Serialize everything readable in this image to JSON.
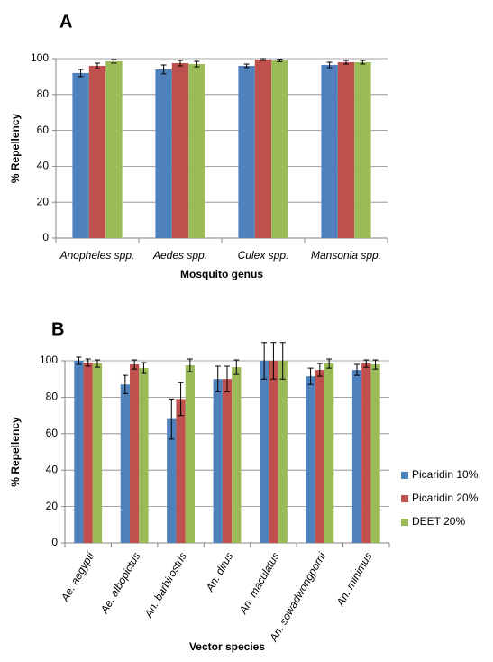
{
  "chart_data": [
    {
      "type": "bar",
      "panel": "A",
      "ylabel": "% Repellency",
      "xlabel": "Mosquito genus",
      "categories": [
        "Anopheles spp.",
        "Aedes spp.",
        "Culex spp.",
        "Mansonia spp."
      ],
      "series": [
        {
          "color": "#4f81bd",
          "values": [
            92,
            94,
            96,
            96.5
          ],
          "errors": [
            2,
            2.5,
            1,
            1.5
          ]
        },
        {
          "color": "#c0504d",
          "values": [
            96,
            97.5,
            99.5,
            98
          ],
          "errors": [
            1.5,
            1.5,
            0.5,
            1
          ]
        },
        {
          "color": "#9bbb59",
          "values": [
            98.5,
            97,
            99,
            98
          ],
          "errors": [
            1,
            1.5,
            0.7,
            1
          ]
        }
      ],
      "ylim": [
        0,
        100
      ],
      "yticks": [
        0,
        20,
        40,
        60,
        80,
        100
      ],
      "grid": true
    },
    {
      "type": "bar",
      "panel": "B",
      "ylabel": "% Repellency",
      "xlabel": "Vector species",
      "categories": [
        "Ae. aegypti",
        "Ae. albopictus",
        "An. barbirostris",
        "An. dirus",
        "An. maculatus",
        "An. sowadwongporni",
        "An. minimus"
      ],
      "series": [
        {
          "name": "Picaridin 10%",
          "color": "#4f81bd",
          "values": [
            100,
            87,
            68,
            90,
            100,
            91.5,
            95
          ],
          "errors": [
            2,
            5,
            11,
            7,
            10,
            4.5,
            3
          ]
        },
        {
          "name": "Picaridin 20%",
          "color": "#c0504d",
          "values": [
            99,
            98,
            79,
            90,
            100,
            95,
            98.5
          ],
          "errors": [
            2,
            2.5,
            9,
            7,
            10,
            3.5,
            2
          ]
        },
        {
          "name": "DEET 20%",
          "color": "#9bbb59",
          "values": [
            98.5,
            96,
            97.5,
            96.5,
            100,
            98.5,
            98
          ],
          "errors": [
            2,
            3,
            3.5,
            4,
            10,
            2.5,
            2.5
          ]
        }
      ],
      "ylim": [
        0,
        100
      ],
      "yticks": [
        0,
        20,
        40,
        60,
        80,
        100
      ],
      "grid": true,
      "legend": "right"
    }
  ]
}
